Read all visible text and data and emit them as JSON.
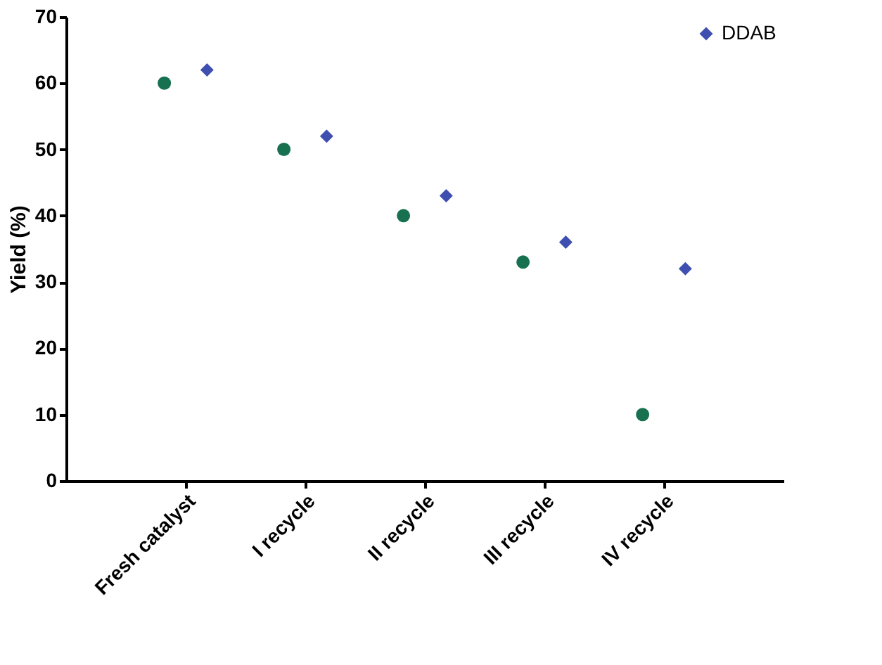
{
  "chart_data": {
    "type": "scatter",
    "ylabel": "Yield (%)",
    "categories": [
      "Fresh catalyst",
      "I recycle",
      "II recycle",
      "III recycle",
      "IV recycle"
    ],
    "series": [
      {
        "name": "DDAB",
        "color": "#3f4fb0",
        "marker": "diamond",
        "values": [
          62,
          52,
          43,
          36,
          32
        ]
      },
      {
        "color": "#17704f",
        "marker": "circle",
        "values": [
          60,
          50,
          40,
          33,
          10
        ]
      }
    ],
    "ylim": [
      0,
      70
    ],
    "yticks": [
      0,
      10,
      20,
      30,
      40,
      50,
      60,
      70
    ],
    "grid": false,
    "legend": "top right"
  }
}
